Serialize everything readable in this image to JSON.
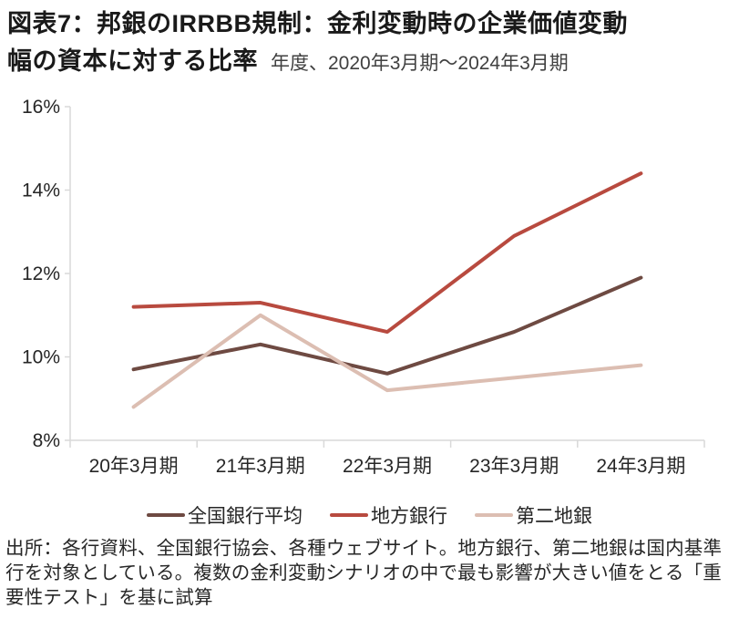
{
  "header": {
    "title_line1": "図表7：邦銀のIRRBB規制：金利変動時の企業価値変動",
    "title_line2": "幅の資本に対する比率",
    "subtitle": "年度、2020年3月期～2024年3月期"
  },
  "chart_data": {
    "type": "line",
    "categories": [
      "20年3月期",
      "21年3月期",
      "22年3月期",
      "23年3月期",
      "24年3月期"
    ],
    "series": [
      {
        "name": "全国銀行平均",
        "color": "#6E4A42",
        "values": [
          9.7,
          10.3,
          9.6,
          10.6,
          11.9
        ]
      },
      {
        "name": "地方銀行",
        "color": "#B84A3F",
        "values": [
          11.2,
          11.3,
          10.6,
          12.9,
          14.4
        ]
      },
      {
        "name": "第二地銀",
        "color": "#DCBEB2",
        "values": [
          8.8,
          11.0,
          9.2,
          9.5,
          9.8
        ]
      }
    ],
    "ylim": [
      8,
      16
    ],
    "ytick_step": 2,
    "ytick_labels": [
      "8%",
      "10%",
      "12%",
      "14%",
      "16%"
    ],
    "xlabel": "",
    "ylabel": "",
    "grid": false,
    "legend_position": "bottom",
    "axis_color": "#d9d9d9",
    "tick_label_color": "#262626"
  },
  "footer": {
    "source": "出所：各行資料、全国銀行協会、各種ウェブサイト。地方銀行、第二地銀は国内基準行を対象としている。複数の金利変動シナリオの中で最も影響が大きい値をとる「重要性テスト」を基に試算"
  }
}
